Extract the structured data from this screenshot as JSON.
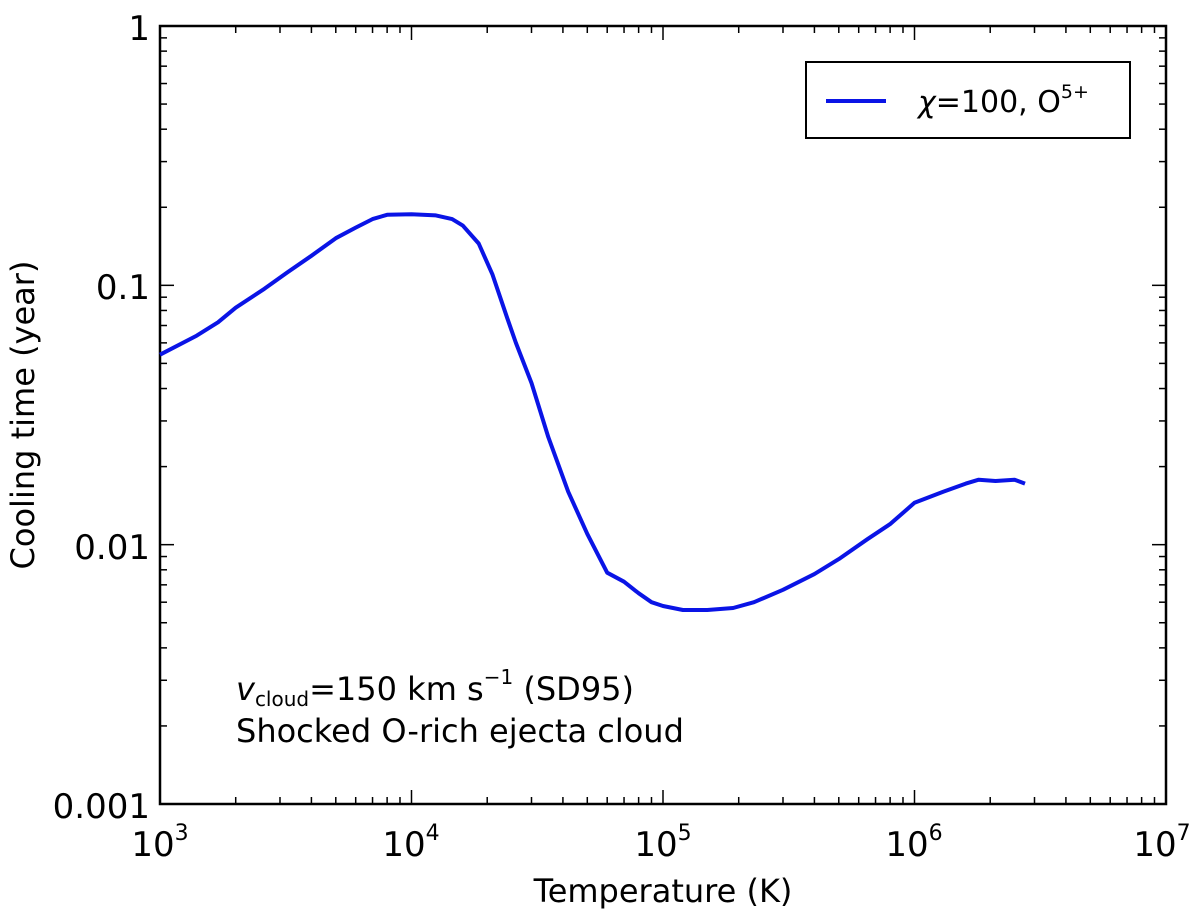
{
  "chart_data": {
    "type": "line",
    "xscale": "log",
    "yscale": "log",
    "xlabel": "Temperature (K)",
    "ylabel": "Cooling time (year)",
    "xlim": [
      1000,
      10000000
    ],
    "ylim": [
      0.001,
      1
    ],
    "x_tick_labels": [
      {
        "base": "10",
        "exp": "3"
      },
      {
        "base": "10",
        "exp": "4"
      },
      {
        "base": "10",
        "exp": "5"
      },
      {
        "base": "10",
        "exp": "6"
      },
      {
        "base": "10",
        "exp": "7"
      }
    ],
    "y_tick_labels": [
      "1",
      "0.1",
      "0.01",
      "0.001"
    ],
    "series": [
      {
        "name_symbol": "χ",
        "name_value": "=100, O",
        "name_sup": "5+",
        "color": "#0a14e6",
        "x": [
          1000,
          1400,
          1700,
          2000,
          2600,
          3200,
          4000,
          5000,
          6000,
          7000,
          8000,
          10000,
          12500,
          14500,
          16000,
          18500,
          21000,
          24000,
          26000,
          30000,
          35000,
          42000,
          50000,
          60000,
          70000,
          80000,
          90000,
          100000,
          120000,
          150000,
          190000,
          230000,
          300000,
          400000,
          500000,
          650000,
          800000,
          1000000,
          1300000,
          1600000,
          1800000,
          2100000,
          2500000,
          2750000
        ],
        "y": [
          0.054,
          0.064,
          0.072,
          0.082,
          0.097,
          0.112,
          0.13,
          0.152,
          0.167,
          0.18,
          0.187,
          0.188,
          0.186,
          0.18,
          0.17,
          0.145,
          0.11,
          0.075,
          0.06,
          0.042,
          0.026,
          0.016,
          0.011,
          0.0078,
          0.0072,
          0.0065,
          0.006,
          0.0058,
          0.0056,
          0.0056,
          0.0057,
          0.006,
          0.0067,
          0.0077,
          0.0088,
          0.0105,
          0.012,
          0.0145,
          0.016,
          0.0172,
          0.0178,
          0.0176,
          0.0178,
          0.0172
        ]
      }
    ],
    "annotations": {
      "line1_symbol": "v",
      "line1_sub": "cloud",
      "line1_rest": "=150 km s",
      "line1_sup": "−1",
      "line1_tail": " (SD95)",
      "line2": "Shocked O-rich ejecta cloud"
    },
    "legend_position": "top-right"
  }
}
